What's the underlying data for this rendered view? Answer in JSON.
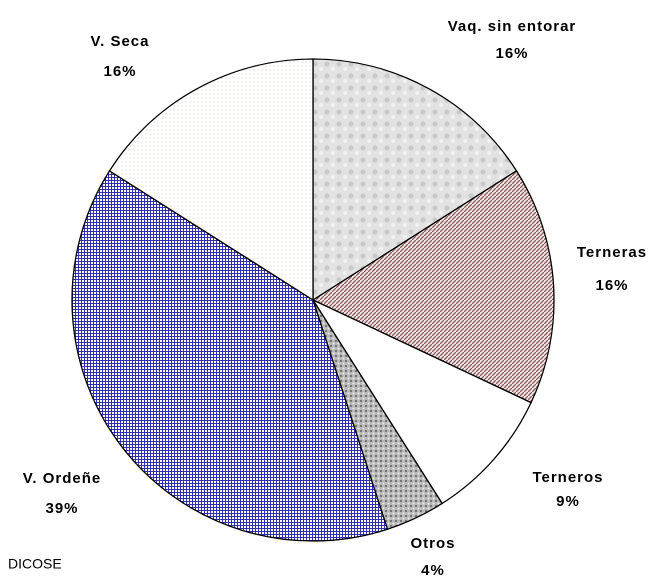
{
  "chart_data": {
    "type": "pie",
    "source": "DICOSE",
    "categories": [
      "Vaq. sin entorar",
      "Terneras",
      "Terneros",
      "Otros",
      "V. Ordeñe",
      "V. Seca"
    ],
    "values": [
      16,
      16,
      9,
      4,
      39,
      16
    ],
    "value_labels": [
      "16%",
      "16%",
      "9%",
      "4%",
      "39%",
      "16%"
    ],
    "colors": [
      "#d4d4d4",
      "#9a7070",
      "#ffffff",
      "#a8a8a8",
      "#3030b0",
      "#fdeeee"
    ]
  }
}
